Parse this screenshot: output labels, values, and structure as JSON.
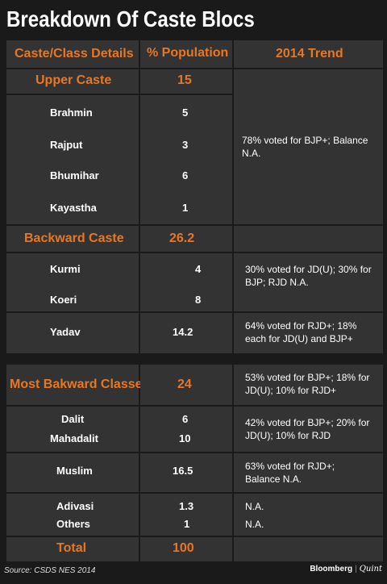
{
  "title": "Breakdown Of Caste Blocs",
  "headers": {
    "col1": "Caste/Class Details",
    "col2": "% Population",
    "col3": "2014 Trend"
  },
  "upper_caste": {
    "label": "Upper Caste",
    "value": "15",
    "rows": [
      {
        "name": "Brahmin",
        "value": "5"
      },
      {
        "name": "Rajput",
        "value": "3"
      },
      {
        "name": "Bhumihar",
        "value": "6"
      },
      {
        "name": "Kayastha",
        "value": "1"
      }
    ],
    "trend": "78% voted for BJP+; Balance N.A."
  },
  "backward_caste": {
    "label": "Backward Caste",
    "value": "26.2",
    "rows": [
      {
        "name": "Kurmi",
        "value": "4"
      },
      {
        "name": "Koeri",
        "value": "8"
      },
      {
        "name": "Yadav",
        "value": "14.2"
      }
    ],
    "trend_kurmi_koeri": "30% voted for JD(U); 30% for BJP; RJD N.A.",
    "trend_yadav": "64% voted for RJD+; 18% each for JD(U) and BJP+"
  },
  "mbc": {
    "label": "Most Bakward Classes",
    "value": "24",
    "trend": "53% voted for BJP+; 18% for JD(U); 10% for RJD+"
  },
  "others": {
    "rows": [
      {
        "name": "Dalit",
        "value": "6"
      },
      {
        "name": "Mahadalit",
        "value": "10"
      },
      {
        "name": "Muslim",
        "value": "16.5"
      },
      {
        "name": "Adivasi",
        "value": "1.3"
      },
      {
        "name": "Others",
        "value": "1"
      }
    ],
    "trend_dalit": "42% voted for BJP+; 20% for JD(U); 10% for RJD",
    "trend_muslim": "63% voted for RJD+; Balance N.A.",
    "trend_adivasi": "N.A.",
    "trend_others": "N.A."
  },
  "total": {
    "label": "Total",
    "value": "100"
  },
  "source": "Source: CSDS NES 2014",
  "brand": {
    "name1": "Bloomberg",
    "name2": "Quint"
  }
}
